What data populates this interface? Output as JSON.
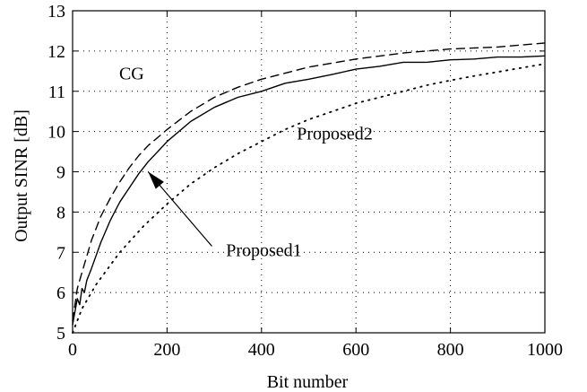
{
  "chart_data": {
    "type": "line",
    "title": "",
    "xlabel": "Bit number",
    "ylabel": "Output SINR [dB]",
    "xlim": [
      0,
      1000
    ],
    "ylim": [
      5,
      13
    ],
    "xticks": [
      0,
      200,
      400,
      600,
      800,
      1000
    ],
    "yticks": [
      5,
      6,
      7,
      8,
      9,
      10,
      11,
      12,
      13
    ],
    "grid": true,
    "series": [
      {
        "style": "dashed",
        "color": "#000000",
        "x": [
          0,
          10,
          20,
          40,
          60,
          80,
          100,
          120,
          140,
          160,
          180,
          200,
          250,
          300,
          350,
          400,
          450,
          500,
          600,
          700,
          800,
          900,
          1000
        ],
        "y": [
          5.3,
          6.1,
          6.5,
          7.3,
          7.9,
          8.35,
          8.75,
          9.1,
          9.4,
          9.65,
          9.85,
          10.05,
          10.5,
          10.85,
          11.1,
          11.3,
          11.45,
          11.6,
          11.8,
          11.95,
          12.05,
          12.1,
          12.2
        ]
      },
      {
        "style": "solid",
        "color": "#000000",
        "x": [
          0,
          10,
          15,
          20,
          25,
          30,
          40,
          60,
          80,
          100,
          120,
          140,
          160,
          180,
          200,
          250,
          300,
          350,
          400,
          450,
          500,
          550,
          600,
          650,
          700,
          750,
          800,
          850,
          900,
          950,
          1000
        ],
        "y": [
          5.2,
          5.85,
          5.7,
          6.1,
          6.0,
          6.3,
          6.6,
          7.25,
          7.8,
          8.25,
          8.6,
          8.95,
          9.25,
          9.5,
          9.75,
          10.25,
          10.6,
          10.85,
          11.0,
          11.2,
          11.3,
          11.42,
          11.55,
          11.62,
          11.72,
          11.72,
          11.78,
          11.8,
          11.85,
          11.85,
          11.88
        ]
      },
      {
        "style": "dotted",
        "color": "#000000",
        "x": [
          0,
          20,
          50,
          100,
          150,
          200,
          250,
          300,
          350,
          400,
          450,
          500,
          550,
          600,
          650,
          700,
          750,
          800,
          850,
          900,
          950,
          1000
        ],
        "y": [
          5.0,
          5.6,
          6.2,
          7.0,
          7.65,
          8.2,
          8.7,
          9.1,
          9.45,
          9.75,
          10.05,
          10.3,
          10.5,
          10.7,
          10.85,
          11.0,
          11.15,
          11.27,
          11.38,
          11.48,
          11.58,
          11.68
        ]
      }
    ],
    "annotations": [
      {
        "text": "CG",
        "x": 125,
        "y": 11.3
      },
      {
        "text": "Proposed2",
        "x": 555,
        "y": 9.8
      },
      {
        "text": "Proposed1",
        "x": 405,
        "y": 6.9
      }
    ],
    "arrow": {
      "from": {
        "x": 295,
        "y": 7.15
      },
      "to": {
        "x": 160,
        "y": 9.0
      }
    }
  }
}
